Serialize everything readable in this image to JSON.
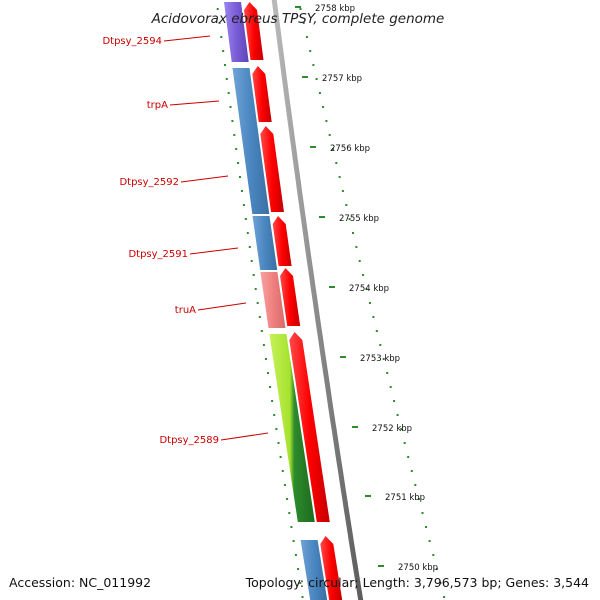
{
  "title": "Acidovorax ebreus TPSY, complete genome",
  "accession": "Accession: NC_011992",
  "topology": "Topology: circular; Length: 3,796,573 bp; Genes: 3,544",
  "colors": {
    "forward_cds": "#ff0000",
    "reverse_blue": "#4a86c0",
    "reverse_purple": "#7a5cd6",
    "reverse_pink": "#f08080",
    "reverse_green": "#a6e22e",
    "tick_green": "#2e8b2e",
    "backbone": "#8a8a8a",
    "label_red": "#cc0000"
  },
  "genes": [
    {
      "name": "Dtpsy_2594"
    },
    {
      "name": "trpA"
    },
    {
      "name": "Dtpsy_2592"
    },
    {
      "name": "Dtpsy_2591"
    },
    {
      "name": "truA"
    },
    {
      "name": "Dtpsy_2589"
    }
  ],
  "scale": [
    {
      "label": "2758 kbp"
    },
    {
      "label": "2757 kbp"
    },
    {
      "label": "2756 kbp"
    },
    {
      "label": "2755 kbp"
    },
    {
      "label": "2754 kbp"
    },
    {
      "label": "2753 kbp"
    },
    {
      "label": "2752 kbp"
    },
    {
      "label": "2751 kbp"
    },
    {
      "label": "2750 kbp"
    }
  ]
}
